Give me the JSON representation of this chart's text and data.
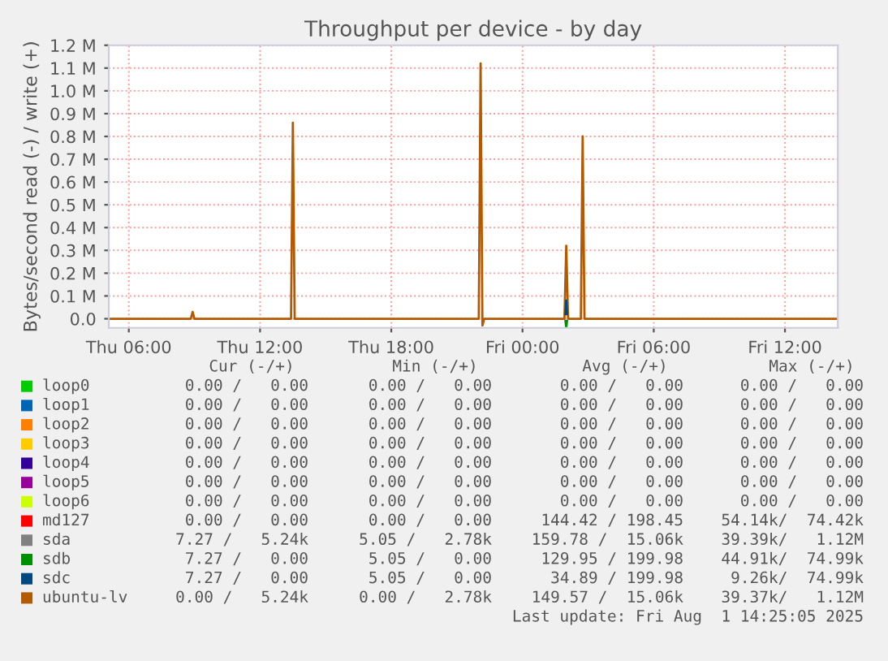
{
  "chart_data": {
    "type": "line",
    "title": "Throughput per device - by day",
    "ylabel": "Bytes/second read (-) / write (+)",
    "x": [
      "2025-07-31T05:05",
      "2025-07-31T08:50",
      "2025-07-31T08:55",
      "2025-07-31T09:00",
      "2025-07-31T13:25",
      "2025-07-31T13:30",
      "2025-07-31T13:35",
      "2025-07-31T22:00",
      "2025-07-31T22:05",
      "2025-07-31T22:10",
      "2025-07-31T22:15",
      "2025-08-01T01:55",
      "2025-08-01T02:00",
      "2025-08-01T02:05",
      "2025-08-01T02:40",
      "2025-08-01T02:45",
      "2025-08-01T02:50",
      "2025-08-01T14:25"
    ],
    "xlim": [
      "2025-07-31T05:05",
      "2025-08-01T14:25"
    ],
    "xticks": [
      {
        "value": "2025-07-31T06:00",
        "label": "Thu 06:00"
      },
      {
        "value": "2025-07-31T12:00",
        "label": "Thu 12:00"
      },
      {
        "value": "2025-07-31T18:00",
        "label": "Thu 18:00"
      },
      {
        "value": "2025-08-01T00:00",
        "label": "Fri 00:00"
      },
      {
        "value": "2025-08-01T06:00",
        "label": "Fri 06:00"
      },
      {
        "value": "2025-08-01T12:00",
        "label": "Fri 12:00"
      }
    ],
    "ylim": [
      -40000,
      1200000
    ],
    "yticks": [
      {
        "value": 0,
        "label": "0.0"
      },
      {
        "value": 100000,
        "label": "0.1 M"
      },
      {
        "value": 200000,
        "label": "0.2 M"
      },
      {
        "value": 300000,
        "label": "0.3 M"
      },
      {
        "value": 400000,
        "label": "0.4 M"
      },
      {
        "value": 500000,
        "label": "0.5 M"
      },
      {
        "value": 600000,
        "label": "0.6 M"
      },
      {
        "value": 700000,
        "label": "0.7 M"
      },
      {
        "value": 800000,
        "label": "0.8 M"
      },
      {
        "value": 900000,
        "label": "0.9 M"
      },
      {
        "value": 1000000,
        "label": "1.0 M"
      },
      {
        "value": 1100000,
        "label": "1.1 M"
      },
      {
        "value": 1200000,
        "label": "1.2 M"
      }
    ],
    "grid": true,
    "legend": "bottom",
    "series": [
      {
        "name": "loop0",
        "color": "#00cc00",
        "values": [
          null,
          null,
          null,
          null,
          null,
          null,
          null,
          null,
          null,
          null,
          null,
          null,
          null,
          null,
          null,
          null,
          null,
          null
        ]
      },
      {
        "name": "loop1",
        "color": "#0066b3",
        "values": [
          null,
          null,
          null,
          null,
          null,
          null,
          null,
          null,
          null,
          null,
          null,
          null,
          null,
          null,
          null,
          null,
          null,
          null
        ]
      },
      {
        "name": "loop2",
        "color": "#ff8000",
        "values": [
          null,
          null,
          null,
          null,
          null,
          null,
          null,
          null,
          null,
          null,
          null,
          null,
          null,
          null,
          null,
          null,
          null,
          null
        ]
      },
      {
        "name": "loop3",
        "color": "#ffcc00",
        "values": [
          null,
          null,
          null,
          null,
          null,
          null,
          null,
          null,
          null,
          null,
          null,
          null,
          null,
          null,
          null,
          null,
          null,
          null
        ]
      },
      {
        "name": "loop4",
        "color": "#330099",
        "values": [
          null,
          null,
          null,
          null,
          null,
          null,
          null,
          null,
          null,
          null,
          null,
          null,
          null,
          null,
          null,
          null,
          null,
          null
        ]
      },
      {
        "name": "loop5",
        "color": "#990099",
        "values": [
          null,
          null,
          null,
          null,
          null,
          null,
          null,
          null,
          null,
          null,
          null,
          null,
          null,
          null,
          null,
          null,
          null,
          null
        ]
      },
      {
        "name": "loop6",
        "color": "#ccff00",
        "values": [
          null,
          null,
          null,
          null,
          null,
          null,
          null,
          null,
          null,
          null,
          null,
          null,
          null,
          null,
          null,
          null,
          null,
          null
        ]
      },
      {
        "name": "md127",
        "color": "#ff0000",
        "values": [
          null,
          null,
          null,
          null,
          null,
          null,
          null,
          null,
          null,
          null,
          null,
          null,
          null,
          null,
          null,
          null,
          null,
          null
        ]
      },
      {
        "name": "sda",
        "color": "#808080",
        "values": [
          null,
          null,
          null,
          null,
          null,
          null,
          null,
          null,
          null,
          null,
          null,
          null,
          null,
          null,
          null,
          null,
          null,
          null
        ]
      },
      {
        "name": "sdb",
        "color": "#008f00",
        "x": [
          "2025-08-01T01:58",
          "2025-08-01T02:00",
          "2025-08-01T02:02"
        ],
        "values": [
          -10000,
          -40000,
          -10000
        ]
      },
      {
        "name": "sdc",
        "color": "#00487d",
        "x": [
          "2025-08-01T01:58",
          "2025-08-01T02:00",
          "2025-08-01T02:02"
        ],
        "values": [
          20000,
          80000,
          20000
        ]
      },
      {
        "name": "ubuntu-lv",
        "color": "#b35a00",
        "values": [
          0,
          0,
          30000,
          0,
          0,
          860000,
          0,
          0,
          1120000,
          -30000,
          0,
          0,
          320000,
          0,
          0,
          800000,
          0,
          0
        ]
      }
    ],
    "annotations": [
      "Cur (-/+)",
      "Min (-/+)",
      "Avg (-/+)",
      "Max (-/+)",
      "0.00 /   0.00",
      "0.00 /   0.00",
      "0.00 /   0.00",
      "0.00 /   0.00",
      "0.00 /   0.00",
      "0.00 /   0.00",
      "0.00 /   0.00",
      "0.00 /   0.00",
      "0.00 /   0.00",
      "0.00 /   0.00",
      "0.00 /   0.00",
      "0.00 /   0.00",
      "0.00 /   0.00",
      "0.00 /   0.00",
      "0.00 /   0.00",
      "0.00 /   0.00",
      "0.00 /   0.00",
      "0.00 /   0.00",
      "0.00 /   0.00",
      "0.00 /   0.00",
      "0.00 /   0.00",
      "0.00 /   0.00",
      "0.00 /   0.00",
      "0.00 /   0.00",
      "0.00 /   0.00",
      "0.00 /   0.00",
      "0.00 /   0.00",
      "0.00 /   0.00",
      "0.00 /   0.00",
      "0.00 /   0.00",
      "144.42 / 198.45",
      "54.14k/  74.42k",
      "7.27 /   5.24k",
      "5.05 /   2.78k",
      "159.78 /  15.06k",
      "39.39k/   1.12M",
      "7.27 /   0.00",
      "5.05 /   0.00",
      "129.95 / 199.98",
      "44.91k/  74.99k",
      "7.27 /   0.00",
      "5.05 /   0.00",
      "34.89 / 199.98",
      "9.26k/  74.99k",
      "0.00 /   5.24k",
      "0.00 /   2.78k",
      "149.57 /  15.06k",
      "39.37k/   1.12M",
      "Last update: Fri Aug  1 14:25:05 2025"
    ]
  }
}
